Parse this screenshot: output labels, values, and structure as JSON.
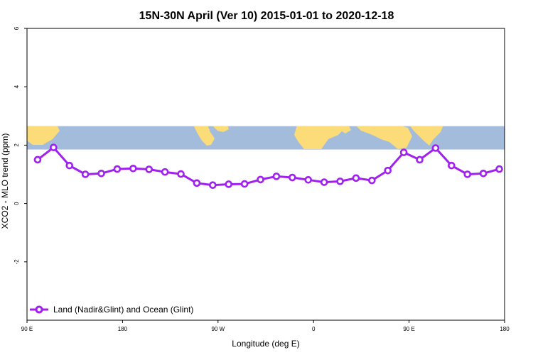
{
  "chart_data": {
    "type": "line",
    "title": "15N-30N April (Ver 10)   2015-01-01 to 2020-12-18",
    "xlabel": "Longitude (deg E)",
    "ylabel": "XCO2 - MLO trend (ppm)",
    "x_ticks": [
      {
        "value": 90,
        "label": "90 E"
      },
      {
        "value": 180,
        "label": "180"
      },
      {
        "value": 270,
        "label": "90 W"
      },
      {
        "value": 360,
        "label": "0"
      },
      {
        "value": 450,
        "label": "90 E"
      },
      {
        "value": 540,
        "label": "180"
      }
    ],
    "y_ticks": [
      {
        "value": -2,
        "label": "-2"
      },
      {
        "value": 0,
        "label": "0"
      },
      {
        "value": 2,
        "label": "2"
      },
      {
        "value": 4,
        "label": "4"
      },
      {
        "value": 6,
        "label": "6"
      }
    ],
    "xlim": [
      90,
      540
    ],
    "ylim": [
      -4,
      6
    ],
    "map_band": [
      1.85,
      2.65
    ],
    "legend_position": "bottom-left",
    "colors": {
      "series": "#a020f0",
      "ocean": "#a4bcdc",
      "land": "#fcdc78",
      "axis": "#000000"
    },
    "series": [
      {
        "name": "Land (Nadir&Glint) and Ocean (Glint)",
        "x": [
          100,
          115,
          130,
          145,
          160,
          175,
          190,
          205,
          220,
          235,
          250,
          265,
          280,
          295,
          310,
          325,
          340,
          355,
          370,
          385,
          400,
          415,
          430,
          445,
          460,
          475,
          490,
          505,
          520,
          535
        ],
        "y": [
          1.5,
          1.92,
          1.3,
          1.0,
          1.03,
          1.18,
          1.2,
          1.17,
          1.08,
          1.01,
          0.7,
          0.63,
          0.66,
          0.67,
          0.82,
          0.93,
          0.89,
          0.81,
          0.73,
          0.76,
          0.87,
          0.79,
          1.13,
          1.75,
          1.5,
          1.9,
          1.3,
          1.0,
          1.03,
          1.18
        ]
      }
    ]
  }
}
